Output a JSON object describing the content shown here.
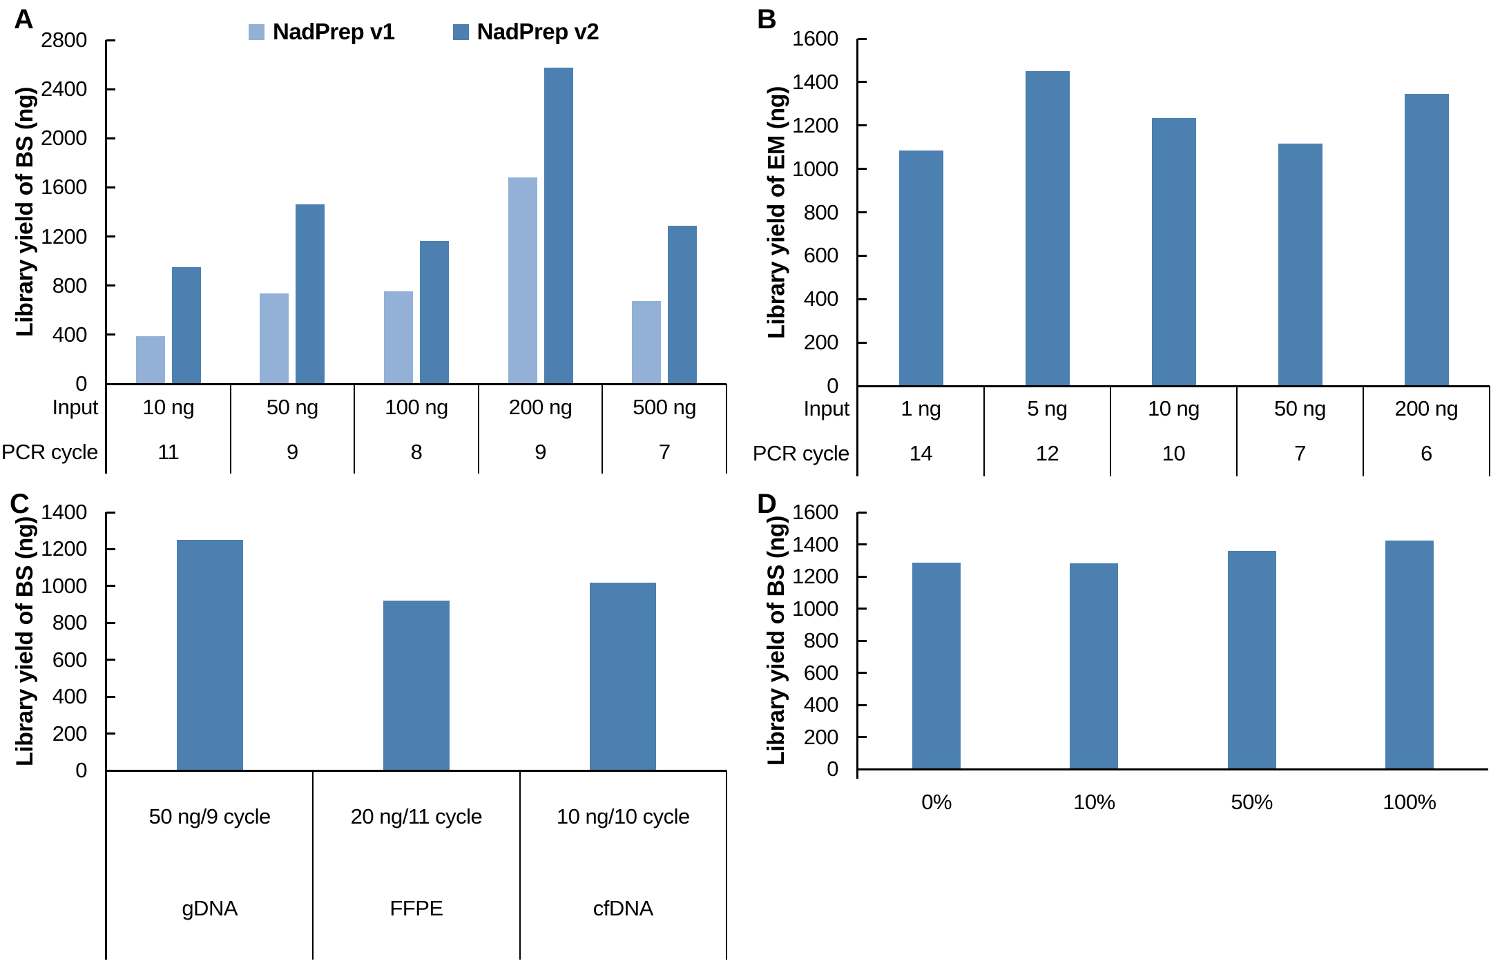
{
  "colors": {
    "series_light_blue": "#93b1d7",
    "series_dark_blue": "#4b80b0",
    "axis_line": "#000000",
    "text": "#000000",
    "background": "#ffffff"
  },
  "chart_data": [
    {
      "id": "A",
      "panel_label": "A",
      "type": "bar",
      "title": "",
      "ylabel": "Library yield of BS (ng)",
      "ylim": [
        0,
        2800
      ],
      "ystep": 400,
      "grid": false,
      "legend_position": "top",
      "x_table": {
        "row_labels": [
          "Input",
          "PCR cycle"
        ],
        "rows": [
          [
            "10 ng",
            "50 ng",
            "100 ng",
            "200 ng",
            "500 ng"
          ],
          [
            "11",
            "9",
            "8",
            "9",
            "7"
          ]
        ]
      },
      "series": [
        {
          "name": "NadPrep v1",
          "color": "#93b1d7",
          "values": [
            390,
            735,
            755,
            1680,
            675
          ]
        },
        {
          "name": "NadPrep v2",
          "color": "#4b80b0",
          "values": [
            950,
            1460,
            1165,
            2575,
            1285
          ]
        }
      ]
    },
    {
      "id": "B",
      "panel_label": "B",
      "type": "bar",
      "title": "",
      "ylabel": "Library yield of EM (ng)",
      "ylim": [
        0,
        1600
      ],
      "ystep": 200,
      "grid": false,
      "x_table": {
        "row_labels": [
          "Input",
          "PCR cycle"
        ],
        "rows": [
          [
            "1 ng",
            "5 ng",
            "10 ng",
            "50 ng",
            "200 ng"
          ],
          [
            "14",
            "12",
            "10",
            "7",
            "6"
          ]
        ]
      },
      "series": [
        {
          "name": "NadPrep v2",
          "color": "#4b80b0",
          "values": [
            1085,
            1450,
            1235,
            1115,
            1345
          ]
        }
      ]
    },
    {
      "id": "C",
      "panel_label": "C",
      "type": "bar",
      "title": "",
      "ylabel": "Library yield of BS (ng)",
      "ylim": [
        0,
        1400
      ],
      "ystep": 200,
      "grid": false,
      "x_table": {
        "row_labels": [],
        "rows": [
          [
            "50 ng/9 cycle",
            "20 ng/11 cycle",
            "10 ng/10 cycle"
          ],
          [
            "gDNA",
            "FFPE",
            "cfDNA"
          ]
        ]
      },
      "series": [
        {
          "name": "NadPrep v2",
          "color": "#4b80b0",
          "values": [
            1250,
            920,
            1020
          ]
        }
      ]
    },
    {
      "id": "D",
      "panel_label": "D",
      "type": "bar",
      "title": "",
      "ylabel": "Library yield of BS (ng)",
      "ylim": [
        0,
        1600
      ],
      "ystep": 200,
      "grid": false,
      "x_labels": [
        "0%",
        "10%",
        "50%",
        "100%"
      ],
      "series": [
        {
          "name": "NadPrep v2",
          "color": "#4b80b0",
          "values": [
            1285,
            1280,
            1360,
            1425
          ]
        }
      ]
    }
  ]
}
